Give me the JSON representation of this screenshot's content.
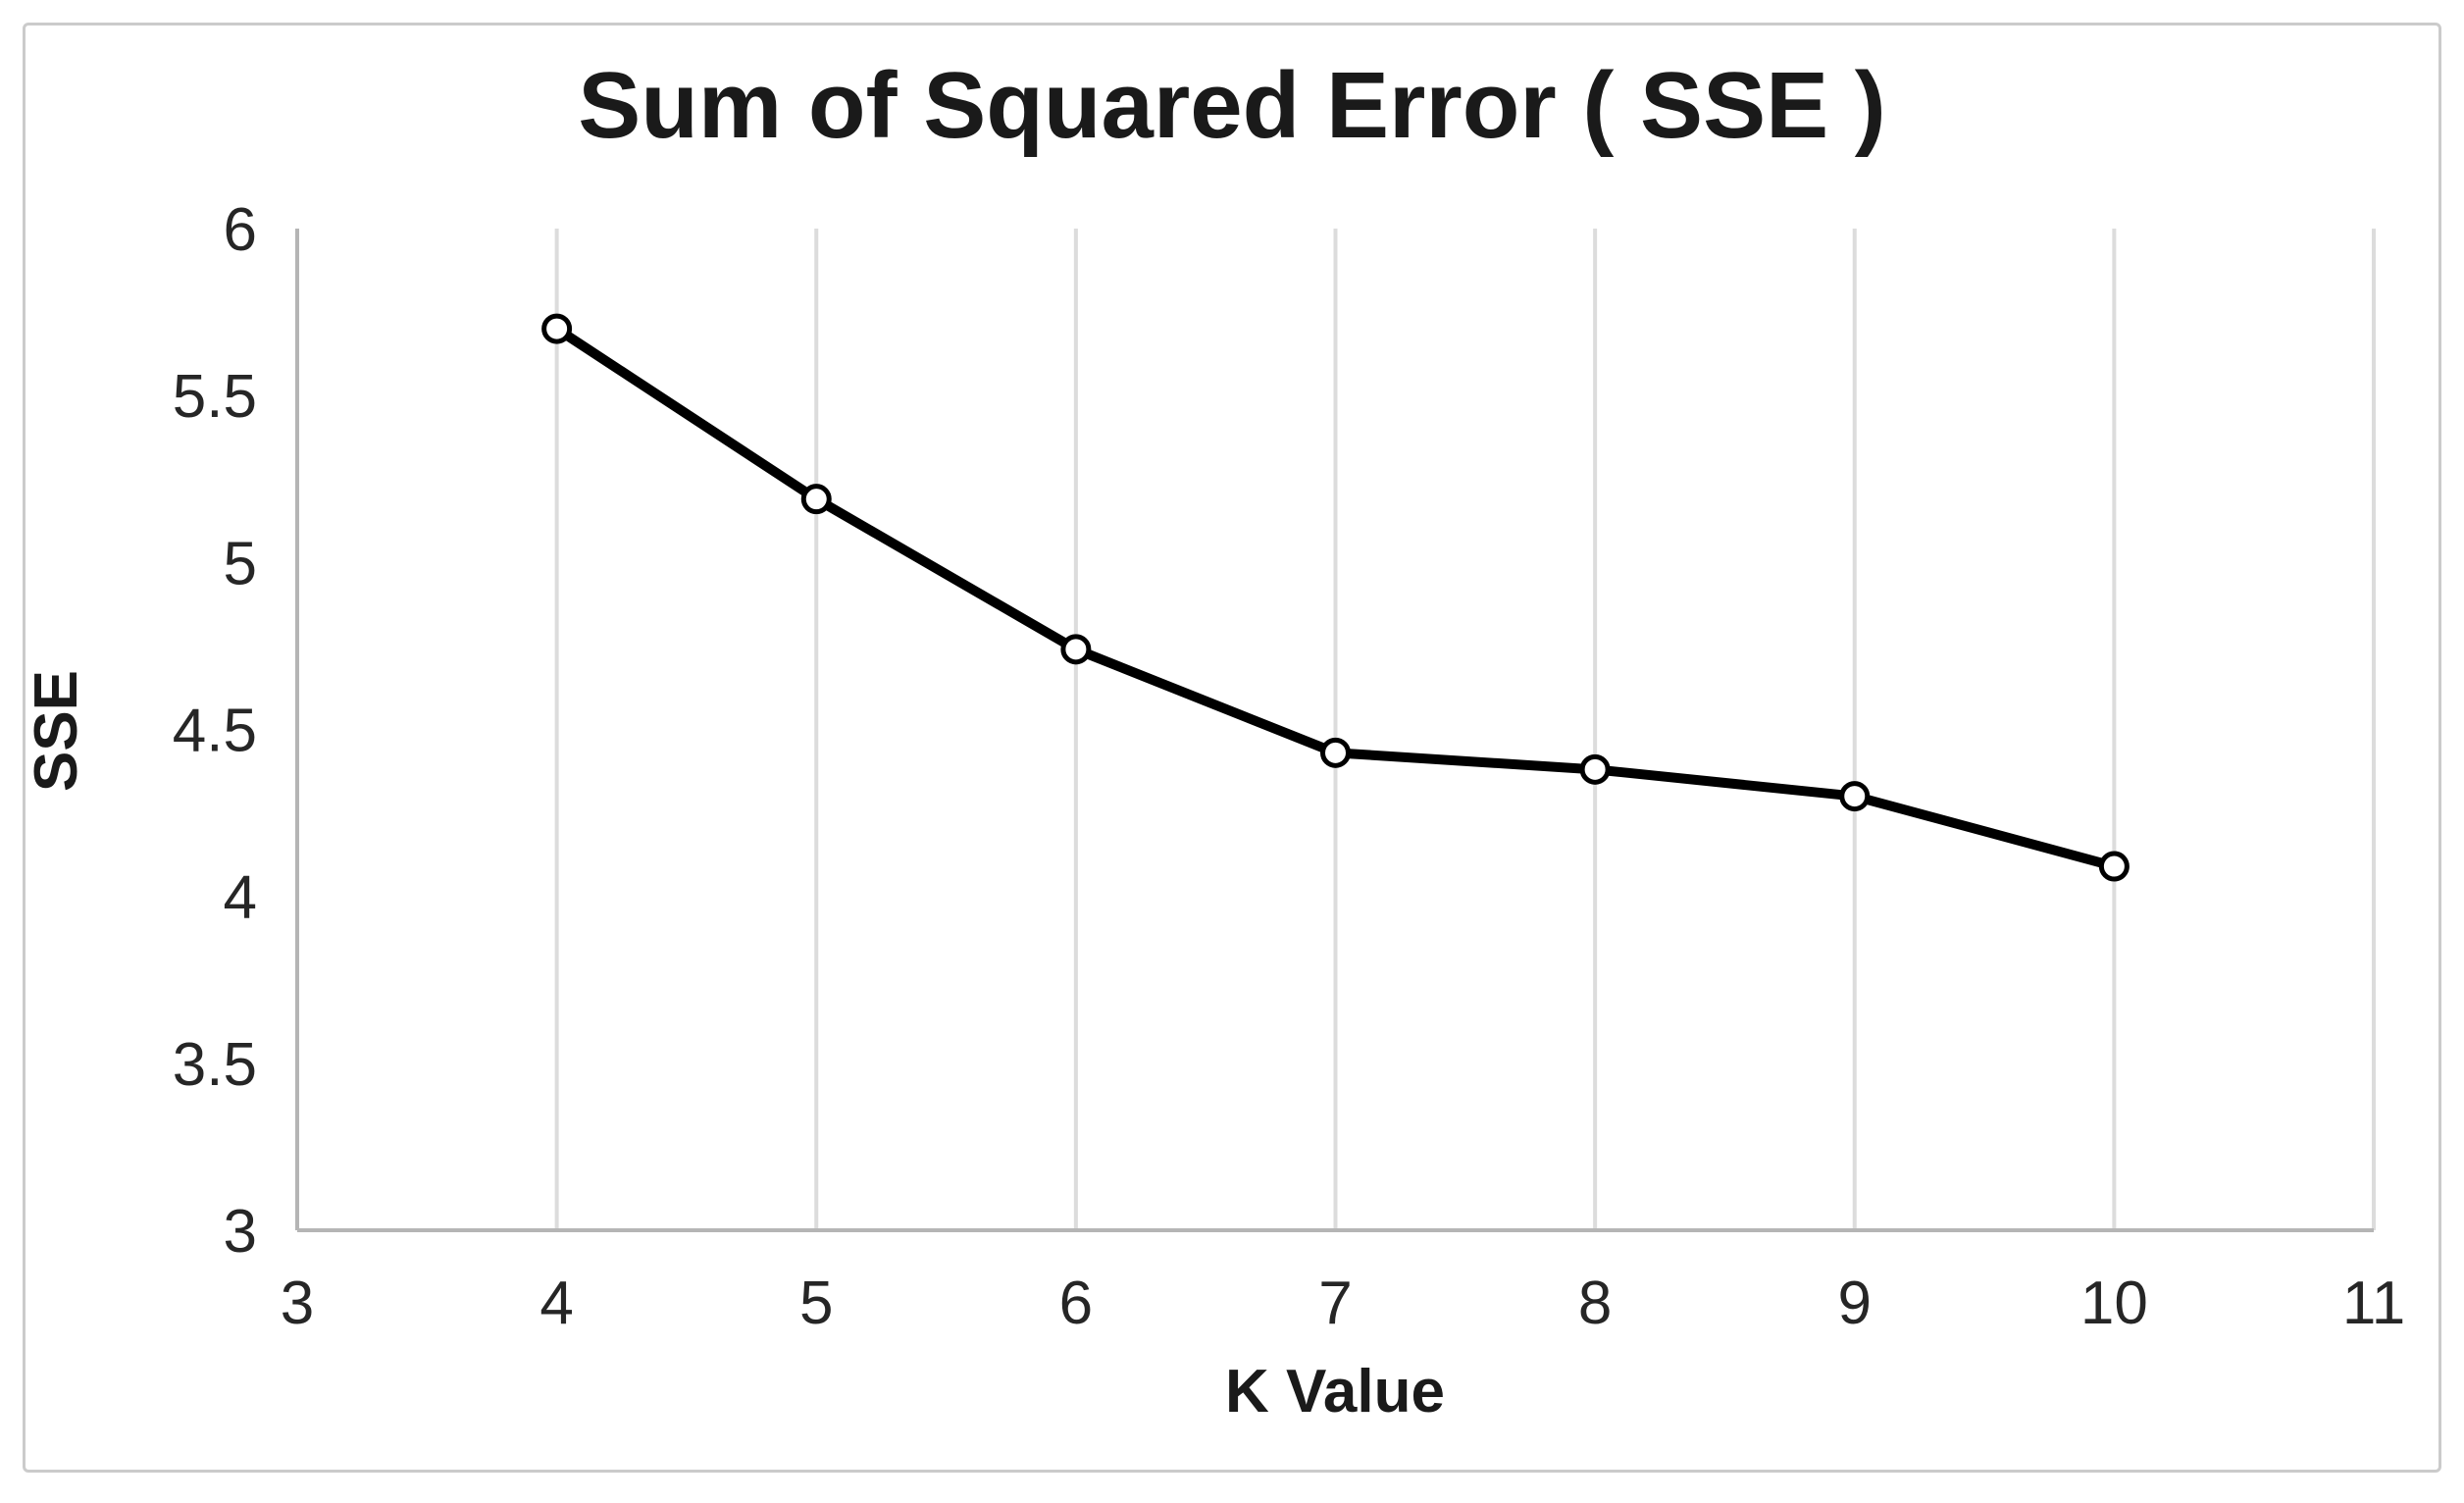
{
  "chart_data": {
    "type": "line",
    "title": "Sum of Squared Error（SSE）",
    "xlabel": "K Value",
    "ylabel": "SSE",
    "x": [
      4,
      5,
      6,
      7,
      8,
      9,
      10
    ],
    "series": [
      {
        "name": "SSE",
        "values": [
          5.7,
          5.19,
          4.74,
          4.43,
          4.38,
          4.3,
          4.09
        ]
      }
    ],
    "xlim": [
      3,
      11
    ],
    "ylim": [
      3,
      6
    ],
    "x_ticks": [
      "3",
      "4",
      "5",
      "6",
      "7",
      "8",
      "9",
      "10",
      "11"
    ],
    "y_ticks": [
      "6",
      "5.5",
      "5",
      "4.5",
      "4",
      "3.5",
      "3"
    ],
    "grid": "vertical-only",
    "legend": "none",
    "marker": "open-circle",
    "colors": {
      "line": "#000000",
      "marker_fill": "#ffffff",
      "grid": "#dcdcdc",
      "axis": "#b5b5b5",
      "text": "#1a1a1a",
      "frame_border": "#cbcbcb",
      "background": "#ffffff"
    }
  }
}
